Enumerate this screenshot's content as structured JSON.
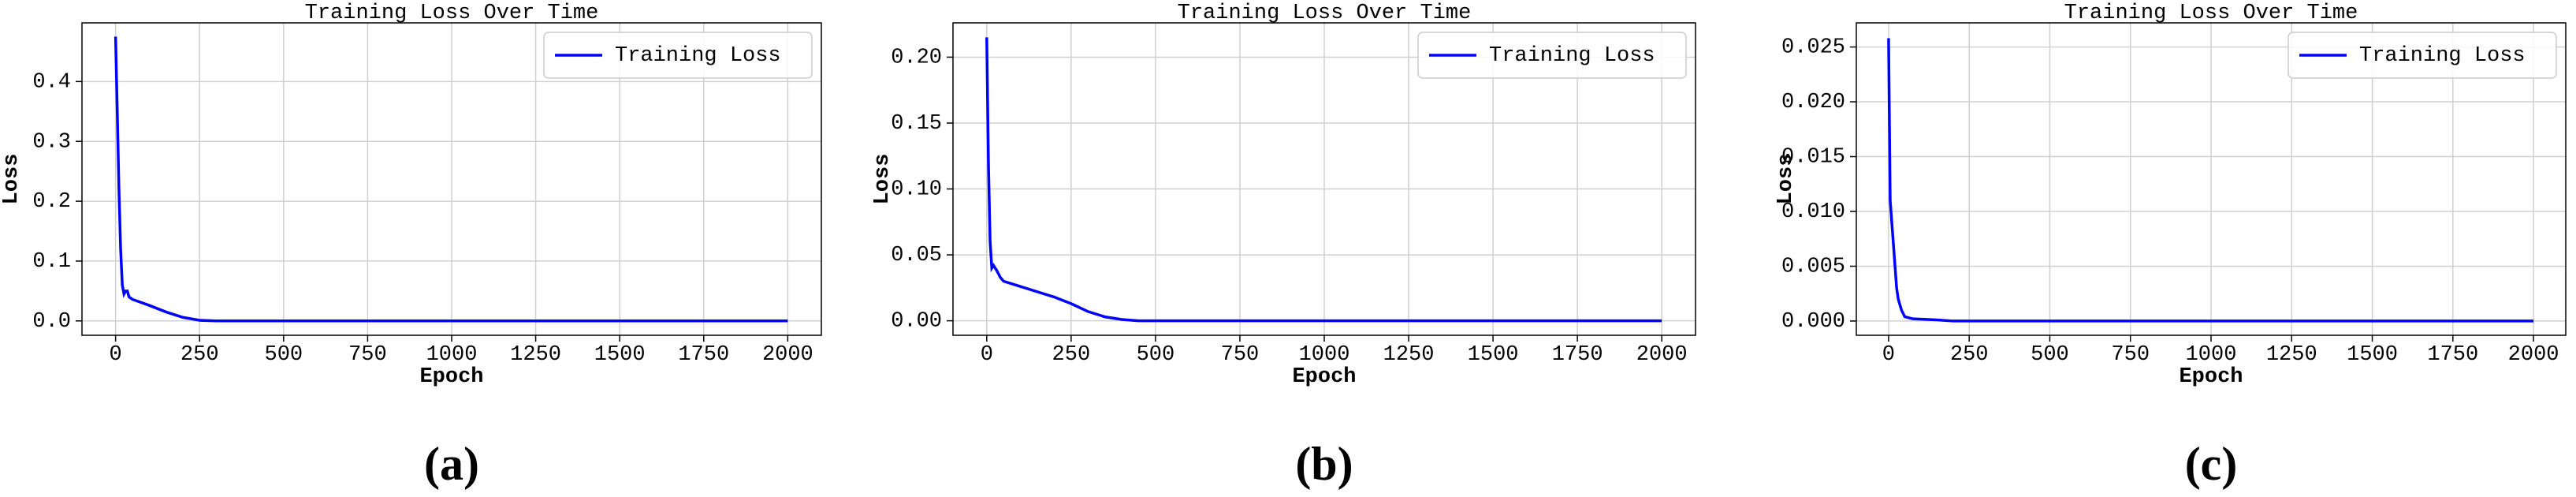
{
  "chart_data": [
    {
      "type": "line",
      "title": "Training Loss Over Time",
      "xlabel": "Epoch",
      "ylabel": "Loss",
      "caption": "(a)",
      "x": [
        0,
        5,
        10,
        15,
        20,
        25,
        30,
        35,
        40,
        50,
        75,
        100,
        150,
        200,
        250,
        300,
        500,
        1000,
        1500,
        2000
      ],
      "series": [
        {
          "name": "Training Loss",
          "color": "#0000ff",
          "values": [
            0.475,
            0.35,
            0.22,
            0.12,
            0.06,
            0.045,
            0.05,
            0.05,
            0.04,
            0.036,
            0.031,
            0.026,
            0.015,
            0.006,
            0.001,
            0,
            0,
            0,
            0,
            0
          ]
        }
      ],
      "xlim": [
        -100,
        2100
      ],
      "ylim": [
        -0.024,
        0.498
      ],
      "xticks": [
        0,
        250,
        500,
        750,
        1000,
        1250,
        1500,
        1750,
        2000
      ],
      "yticks": [
        {
          "value": 0,
          "label": "0.0"
        },
        0.1,
        0.2,
        0.3,
        0.4
      ],
      "grid": true,
      "legend": "upper right"
    },
    {
      "type": "line",
      "title": "Training Loss Over Time",
      "xlabel": "Epoch",
      "ylabel": "Loss",
      "caption": "(b)",
      "x": [
        0,
        5,
        10,
        15,
        20,
        25,
        30,
        40,
        50,
        100,
        150,
        200,
        250,
        300,
        350,
        400,
        450,
        1000,
        1500,
        2000
      ],
      "series": [
        {
          "name": "Training Loss",
          "color": "#0000ff",
          "values": [
            0.215,
            0.12,
            0.06,
            0.04,
            0.042,
            0.04,
            0.038,
            0.033,
            0.03,
            0.026,
            0.022,
            0.018,
            0.013,
            0.007,
            0.003,
            0.001,
            0,
            0,
            0,
            0
          ]
        }
      ],
      "xlim": [
        -100,
        2100
      ],
      "ylim": [
        -0.011,
        0.226
      ],
      "xticks": [
        0,
        250,
        500,
        750,
        1000,
        1250,
        1500,
        1750,
        2000
      ],
      "yticks": [
        {
          "value": 0,
          "label": "0.00"
        },
        0.05,
        {
          "value": 0.1,
          "label": "0.10"
        },
        0.15,
        {
          "value": 0.2,
          "label": "0.20"
        }
      ],
      "grid": true,
      "legend": "upper right"
    },
    {
      "type": "line",
      "title": "Training Loss Over Time",
      "xlabel": "Epoch",
      "ylabel": "Loss",
      "caption": "(c)",
      "x": [
        0,
        5,
        10,
        15,
        20,
        25,
        30,
        40,
        50,
        75,
        150,
        200,
        1000,
        2000
      ],
      "series": [
        {
          "name": "Training Loss",
          "color": "#0000ff",
          "values": [
            0.0258,
            0.011,
            0.009,
            0.007,
            0.005,
            0.003,
            0.002,
            0.001,
            0.0004,
            0.0002,
            0.0001,
            0,
            0,
            0
          ]
        }
      ],
      "xlim": [
        -100,
        2100
      ],
      "ylim": [
        -0.0013,
        0.0272
      ],
      "xticks": [
        0,
        250,
        500,
        750,
        1000,
        1250,
        1500,
        1750,
        2000
      ],
      "yticks": [
        {
          "value": 0,
          "label": "0.000"
        },
        0.005,
        {
          "value": 0.01,
          "label": "0.010"
        },
        0.015,
        {
          "value": 0.02,
          "label": "0.020"
        },
        0.025
      ],
      "grid": true,
      "legend": "upper right"
    }
  ]
}
